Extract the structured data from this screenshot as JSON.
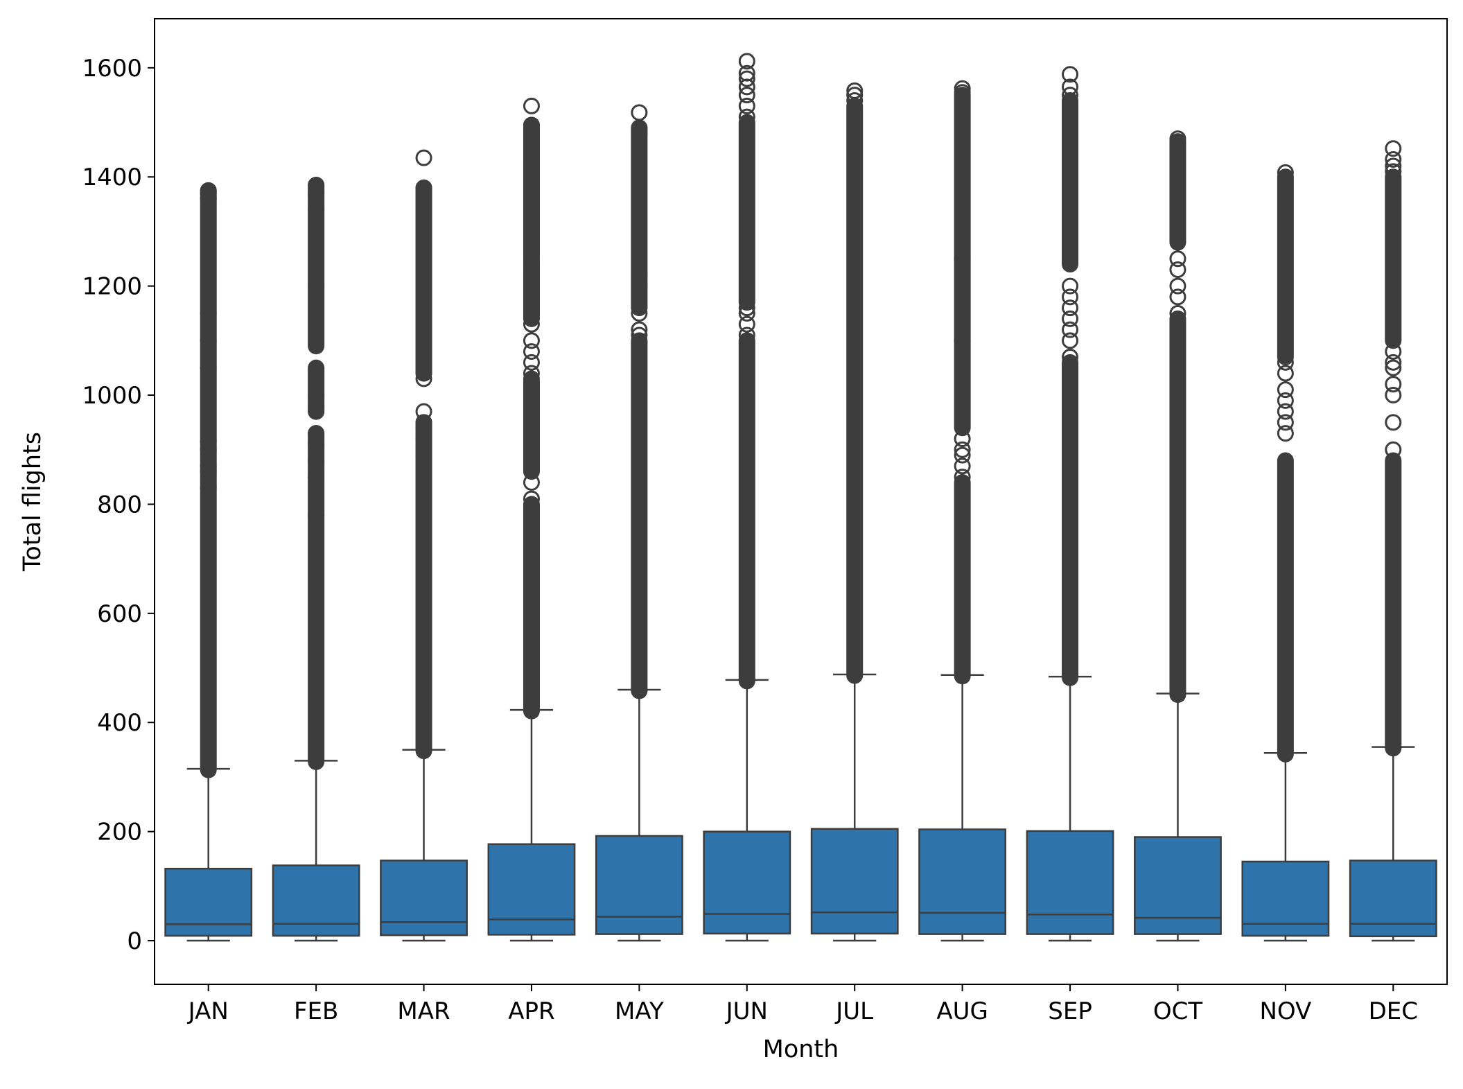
{
  "chart_data": {
    "type": "box",
    "xlabel": "Month",
    "ylabel": "Total flights",
    "ylim": [
      -80,
      1690
    ],
    "yticks": [
      0,
      200,
      400,
      600,
      800,
      1000,
      1200,
      1400,
      1600
    ],
    "grid": false,
    "colors": {
      "box_fill": "#2e73aa",
      "line": "#3d3d3d",
      "axis": "#000000"
    },
    "categories": [
      "JAN",
      "FEB",
      "MAR",
      "APR",
      "MAY",
      "JUN",
      "JUL",
      "AUG",
      "SEP",
      "OCT",
      "NOV",
      "DEC"
    ],
    "boxes": [
      {
        "month": "JAN",
        "whisker_low": 0,
        "q1": 9,
        "median": 30,
        "q3": 132,
        "whisker_high": 315,
        "outlier_bands": [
          [
            313,
            830
          ],
          [
            830,
            1150
          ],
          [
            1150,
            1375
          ]
        ],
        "outliers": [
          860,
          870,
          900,
          915,
          1050,
          1100,
          1360,
          1370,
          1375
        ]
      },
      {
        "month": "FEB",
        "whisker_low": 0,
        "q1": 9,
        "median": 31,
        "q3": 138,
        "whisker_high": 330,
        "outlier_bands": [
          [
            328,
            780
          ],
          [
            780,
            930
          ],
          [
            970,
            1050
          ],
          [
            1090,
            1385
          ]
        ],
        "outliers": [
          850,
          880,
          910,
          930,
          970,
          980,
          1000,
          1200,
          1340,
          1370,
          1385
        ]
      },
      {
        "month": "MAR",
        "whisker_low": 0,
        "q1": 10,
        "median": 34,
        "q3": 147,
        "whisker_high": 350,
        "outlier_bands": [
          [
            348,
            890
          ],
          [
            890,
            950
          ],
          [
            1040,
            1380
          ]
        ],
        "outliers": [
          900,
          920,
          940,
          950,
          970,
          1030,
          1040,
          1360,
          1370,
          1380,
          1435
        ]
      },
      {
        "month": "APR",
        "whisker_low": 0,
        "q1": 11,
        "median": 39,
        "q3": 177,
        "whisker_high": 423,
        "outlier_bands": [
          [
            421,
            800
          ],
          [
            860,
            1030
          ],
          [
            1140,
            1495
          ]
        ],
        "outliers": [
          810,
          840,
          1040,
          1060,
          1080,
          1100,
          1130,
          1240,
          1450,
          1480,
          1495,
          1530
        ]
      },
      {
        "month": "MAY",
        "whisker_low": 0,
        "q1": 12,
        "median": 44,
        "q3": 192,
        "whisker_high": 460,
        "outlier_bands": [
          [
            458,
            1100
          ],
          [
            1160,
            1490
          ]
        ],
        "outliers": [
          1110,
          1120,
          1150,
          1200,
          1220,
          1480,
          1490,
          1518
        ]
      },
      {
        "month": "JUN",
        "whisker_low": 0,
        "q1": 13,
        "median": 49,
        "q3": 200,
        "whisker_high": 478,
        "outlier_bands": [
          [
            476,
            1100
          ],
          [
            1170,
            1500
          ]
        ],
        "outliers": [
          1110,
          1130,
          1150,
          1160,
          1510,
          1530,
          1550,
          1565,
          1580,
          1590,
          1612
        ]
      },
      {
        "month": "JUL",
        "whisker_low": 0,
        "q1": 13,
        "median": 52,
        "q3": 205,
        "whisker_high": 488,
        "outlier_bands": [
          [
            486,
            1530
          ]
        ],
        "outliers": [
          1540,
          1550,
          1558
        ]
      },
      {
        "month": "AUG",
        "whisker_low": 0,
        "q1": 12,
        "median": 51,
        "q3": 204,
        "whisker_high": 487,
        "outlier_bands": [
          [
            485,
            840
          ],
          [
            940,
            1550
          ]
        ],
        "outliers": [
          850,
          870,
          890,
          900,
          920,
          1100,
          1250,
          1555,
          1562
        ]
      },
      {
        "month": "SEP",
        "whisker_low": 0,
        "q1": 12,
        "median": 48,
        "q3": 201,
        "whisker_high": 484,
        "outlier_bands": [
          [
            482,
            1060
          ],
          [
            1240,
            1540
          ]
        ],
        "outliers": [
          1070,
          1100,
          1120,
          1140,
          1160,
          1180,
          1200,
          1550,
          1565,
          1588
        ]
      },
      {
        "month": "OCT",
        "whisker_low": 0,
        "q1": 12,
        "median": 42,
        "q3": 190,
        "whisker_high": 453,
        "outlier_bands": [
          [
            451,
            1140
          ],
          [
            1280,
            1465
          ]
        ],
        "outliers": [
          1150,
          1180,
          1200,
          1230,
          1250,
          1470
        ]
      },
      {
        "month": "NOV",
        "whisker_low": 0,
        "q1": 9,
        "median": 31,
        "q3": 145,
        "whisker_high": 344,
        "outlier_bands": [
          [
            342,
            880
          ],
          [
            1070,
            1400
          ]
        ],
        "outliers": [
          930,
          950,
          970,
          990,
          1010,
          1040,
          1060,
          1408
        ]
      },
      {
        "month": "DEC",
        "whisker_low": 0,
        "q1": 8,
        "median": 31,
        "q3": 147,
        "whisker_high": 355,
        "outlier_bands": [
          [
            353,
            880
          ],
          [
            1100,
            1400
          ]
        ],
        "outliers": [
          900,
          950,
          1000,
          1020,
          1050,
          1060,
          1080,
          1410,
          1420,
          1432,
          1452
        ]
      }
    ]
  }
}
